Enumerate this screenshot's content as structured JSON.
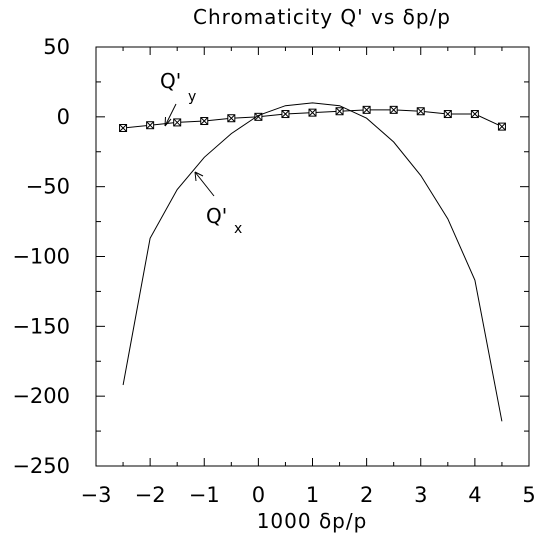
{
  "chart_data": {
    "type": "line",
    "title": "Chromaticity Q' vs δp/p",
    "xlabel": "1000 δp/p",
    "ylabel": "",
    "xlim": [
      -3,
      5
    ],
    "ylim": [
      -250,
      50
    ],
    "x_ticks": [
      "−3",
      "−2",
      "−1",
      "0",
      "1",
      "2",
      "3",
      "4",
      "5"
    ],
    "y_ticks": [
      "50",
      "0",
      "−50",
      "−100",
      "−150",
      "−200",
      "−250"
    ],
    "grid": false,
    "annotations": [
      {
        "main": "Q'",
        "sub": "y"
      },
      {
        "main": "Q'",
        "sub": "x"
      }
    ],
    "series": [
      {
        "marker": "boxed-x",
        "x": [
          -2.5,
          -2,
          -1.5,
          -1,
          -0.5,
          0,
          0.5,
          1,
          1.5,
          2,
          2.5,
          3,
          3.5,
          4,
          4.5
        ],
        "y": [
          -8,
          -6,
          -4,
          -3,
          -1,
          0,
          2,
          3,
          4,
          5,
          5,
          4,
          2,
          2,
          -7
        ]
      },
      {
        "marker": "none",
        "x": [
          -2.5,
          -2,
          -1.5,
          -1,
          -0.5,
          0,
          0.5,
          1,
          1.5,
          2,
          2.5,
          3,
          3.5,
          4,
          4.5
        ],
        "y": [
          -192,
          -87,
          -52,
          -29,
          -12,
          1,
          8,
          10,
          8,
          -1,
          -18,
          -42,
          -73,
          -117,
          -218
        ]
      }
    ]
  }
}
